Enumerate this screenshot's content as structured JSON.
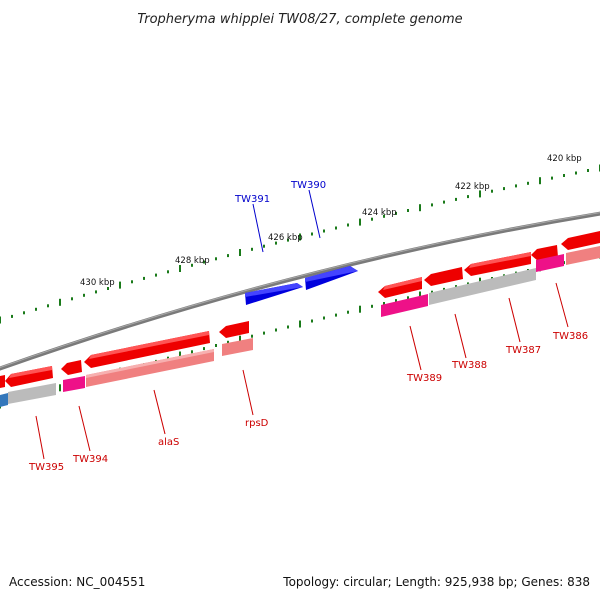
{
  "title": "Tropheryma whipplei TW08/27, complete genome",
  "footer": {
    "accession": "Accession: NC_004551",
    "summary": "Topology: circular; Length: 925,938 bp; Genes: 838"
  },
  "colors": {
    "backbone": "#7f7f7f",
    "forward_gene": "#0000dd",
    "reverse_gene": "#ee0000",
    "reverse_gene_label": "#cc0000",
    "forward_gene_label": "#0000cc",
    "cds_light": "#f08080",
    "cds_magenta": "#ee1188",
    "cds_grey": "#bbbbbb",
    "cds_blue": "#3377bb",
    "tick": "#1a7a1a"
  },
  "scale_labels": [
    "420 kbp",
    "422 kbp",
    "424 kbp",
    "426 kbp",
    "428 kbp",
    "430 kbp"
  ],
  "gene_labels": [
    {
      "name": "TW390",
      "strand": "forward"
    },
    {
      "name": "TW391",
      "strand": "forward"
    },
    {
      "name": "TW386",
      "strand": "reverse"
    },
    {
      "name": "TW387",
      "strand": "reverse"
    },
    {
      "name": "TW388",
      "strand": "reverse"
    },
    {
      "name": "TW389",
      "strand": "reverse"
    },
    {
      "name": "rpsD",
      "strand": "reverse"
    },
    {
      "name": "alaS",
      "strand": "reverse"
    },
    {
      "name": "TW394",
      "strand": "reverse"
    },
    {
      "name": "TW395",
      "strand": "reverse"
    }
  ]
}
